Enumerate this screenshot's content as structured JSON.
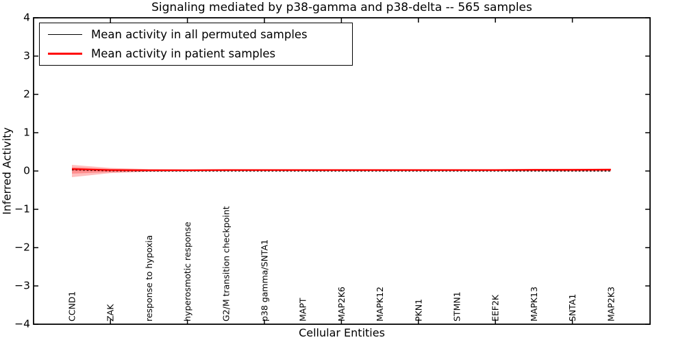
{
  "title": "Signaling mediated by p38-gamma and p38-delta -- 565 samples",
  "axes": {
    "xlabel": "Cellular Entities",
    "ylabel": "Inferred Activity",
    "yticks": [
      {
        "label": "4",
        "value": 4
      },
      {
        "label": "3",
        "value": 3
      },
      {
        "label": "2",
        "value": 2
      },
      {
        "label": "1",
        "value": 1
      },
      {
        "label": "0",
        "value": 0
      },
      {
        "label": "−1",
        "value": -1
      },
      {
        "label": "−2",
        "value": -2
      },
      {
        "label": "−3",
        "value": -3
      },
      {
        "label": "−4",
        "value": -4
      }
    ]
  },
  "legend": {
    "items": [
      {
        "label": "Mean activity in all permuted samples",
        "color": "#000000",
        "thickness": 1.6
      },
      {
        "label": "Mean activity in patient samples",
        "color": "#ff0000",
        "thickness": 2.3
      }
    ]
  },
  "chart_data": {
    "type": "line",
    "title": "Signaling mediated by p38-gamma and p38-delta -- 565 samples",
    "xlabel": "Cellular Entities",
    "ylabel": "Inferred Activity",
    "ylim": [
      -4,
      4
    ],
    "grid": false,
    "legend_position": "upper left",
    "categories": [
      "CCND1",
      "ZAK",
      "response to hypoxia",
      "hyperosmotic response",
      "G2/M transition checkpoint",
      "p38 gamma/SNTA1",
      "MAPT",
      "MAP2K6",
      "MAPK12",
      "PKN1",
      "STMN1",
      "EEF2K",
      "MAPK13",
      "SNTA1",
      "MAP2K3"
    ],
    "series": [
      {
        "name": "Mean activity in all permuted samples",
        "color": "#000000",
        "dash": "dashed",
        "values": [
          0.03,
          0.005,
          0.0,
          0.0,
          0.0,
          0.0,
          0.0,
          0.0,
          0.0,
          0.0,
          0.0,
          0.0,
          0.0,
          0.0,
          0.0
        ]
      },
      {
        "name": "Mean activity in patient samples",
        "color": "#ff0000",
        "dash": "solid",
        "values": [
          0.05,
          0.025,
          0.02,
          0.02,
          0.025,
          0.025,
          0.025,
          0.025,
          0.025,
          0.025,
          0.025,
          0.025,
          0.03,
          0.03,
          0.035
        ]
      }
    ],
    "bands": [
      {
        "name": "patient-samples-spread-outer",
        "color": "#ff0000",
        "opacity": 0.25,
        "upper": [
          0.16,
          0.08,
          0.05,
          0.045,
          0.05,
          0.05,
          0.05,
          0.05,
          0.05,
          0.05,
          0.05,
          0.05,
          0.055,
          0.06,
          0.065
        ],
        "lower": [
          -0.16,
          -0.055,
          -0.02,
          -0.01,
          -0.005,
          -0.005,
          -0.005,
          -0.005,
          -0.005,
          -0.005,
          -0.005,
          -0.005,
          -0.008,
          -0.01,
          -0.01
        ]
      },
      {
        "name": "patient-samples-spread-inner",
        "color": "#ff0000",
        "opacity": 0.25,
        "upper": [
          0.1,
          0.055,
          0.04,
          0.035,
          0.04,
          0.04,
          0.04,
          0.04,
          0.04,
          0.04,
          0.04,
          0.04,
          0.045,
          0.045,
          0.05
        ],
        "lower": [
          -0.07,
          -0.03,
          -0.01,
          -0.003,
          0.0,
          0.0,
          0.0,
          0.0,
          0.0,
          0.0,
          0.0,
          0.0,
          0.0,
          0.0,
          0.0
        ]
      }
    ]
  }
}
